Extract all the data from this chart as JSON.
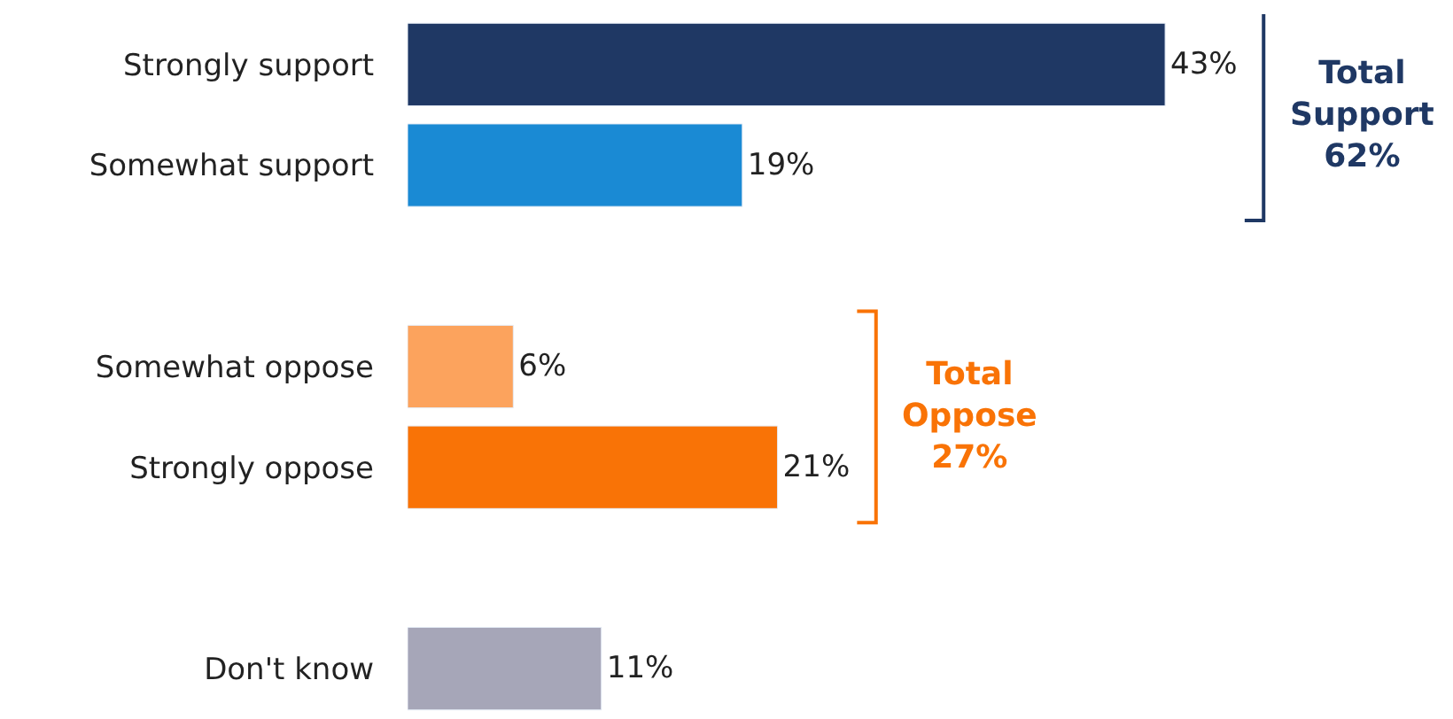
{
  "chart_data": {
    "type": "bar",
    "orientation": "horizontal",
    "categories": [
      "Strongly support",
      "Somewhat support",
      null,
      "Somewhat oppose",
      "Strongly oppose",
      null,
      "Don't know"
    ],
    "values": [
      43,
      19,
      null,
      6,
      21,
      null,
      11
    ],
    "colors": [
      "#1f3864",
      "#1a8ad4",
      null,
      "#fca35d",
      "#f97306",
      null,
      "#a6a6b8"
    ],
    "value_labels": [
      "43%",
      "19%",
      null,
      "6%",
      "21%",
      null,
      "11%"
    ],
    "annotations": [
      "Total\nSupport\n62%",
      "Total\nOppose\n27%"
    ],
    "legend": false
  }
}
